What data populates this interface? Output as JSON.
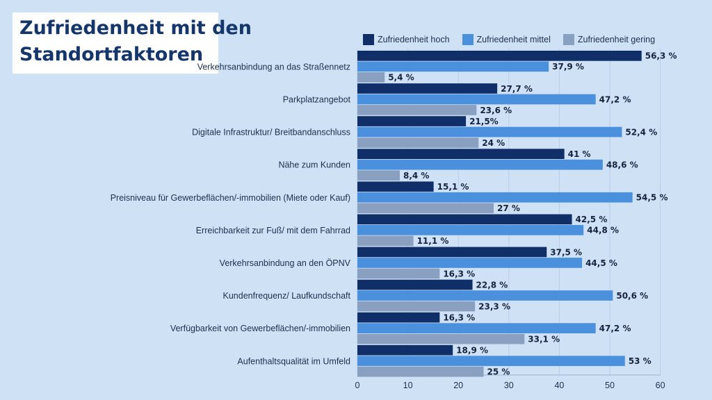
{
  "title_lines": [
    "Zufriedenheit mit den",
    "Standortfaktoren"
  ],
  "colors": {
    "background": "#cfe1f5",
    "title_text": "#14366a",
    "hoch": "#102e68",
    "mittel": "#4a90dc",
    "gering": "#8aa0c1"
  },
  "chart_data": {
    "type": "bar",
    "orientation": "horizontal",
    "title": "Zufriedenheit mit den Standortfaktoren",
    "xlim": [
      0,
      60
    ],
    "xticks": [
      0,
      10,
      20,
      30,
      40,
      50,
      60
    ],
    "grid": true,
    "legend_position": "top",
    "categories": [
      "Verkehrsanbindung an das Straßennetz",
      "Parkplatzangebot",
      "Digitale Infrastruktur/ Breitbandanschluss",
      "Nähe zum Kunden",
      "Preisniveau für Gewerbeflächen/-immobilien (Miete oder Kauf)",
      "Erreichbarkeit zur Fuß/ mit dem Fahrrad",
      "Verkehrsanbindung an den ÖPNV",
      "Kundenfrequenz/ Laufkundschaft",
      "Verfügbarkeit von Gewerbeflächen/-immobilien",
      "Aufenthaltsqualität im Umfeld"
    ],
    "series": [
      {
        "name": "Zufriedenheit hoch",
        "values": [
          56.3,
          27.7,
          21.5,
          41,
          15.1,
          42.5,
          37.5,
          22.8,
          16.3,
          18.9
        ],
        "labels": [
          "56,3 %",
          "27,7 %",
          "21,5%",
          "41 %",
          "15,1 %",
          "42,5 %",
          "37,5 %",
          "22,8 %",
          "16,3 %",
          "18,9 %"
        ]
      },
      {
        "name": "Zufriedenheit mittel",
        "values": [
          37.9,
          47.2,
          52.4,
          48.6,
          54.5,
          44.8,
          44.5,
          50.6,
          47.2,
          53
        ],
        "labels": [
          "37,9 %",
          "47,2 %",
          "52,4 %",
          "48,6 %",
          "54,5 %",
          "44,8 %",
          "44,5 %",
          "50,6 %",
          "47,2 %",
          "53 %"
        ]
      },
      {
        "name": "Zufriedenheit gering",
        "values": [
          5.4,
          23.6,
          24,
          8.4,
          27,
          11.1,
          16.3,
          23.3,
          33.1,
          25
        ],
        "labels": [
          "5,4 %",
          "23,6 %",
          "24 %",
          "8,4 %",
          "27 %",
          "11,1 %",
          "16,3 %",
          "23,3 %",
          "33,1 %",
          "25 %"
        ]
      }
    ]
  }
}
